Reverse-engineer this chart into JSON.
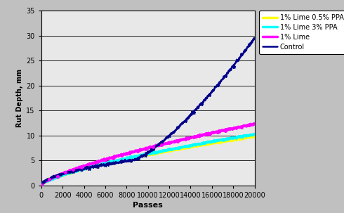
{
  "title": "",
  "xlabel": "Passes",
  "ylabel": "Rut Depth, mm",
  "xlim": [
    0,
    20000
  ],
  "ylim": [
    0,
    35
  ],
  "yticks": [
    0,
    5,
    10,
    15,
    20,
    25,
    30,
    35
  ],
  "xticks": [
    0,
    2000,
    4000,
    6000,
    8000,
    10000,
    12000,
    14000,
    16000,
    18000,
    20000
  ],
  "legend_labels": [
    "Control",
    "1% Lime",
    "1% Lime 0.5% PPA",
    "1% Lime 3% PPA"
  ],
  "legend_colors": [
    "#00008B",
    "#FF00FF",
    "#FFFF00",
    "#00FFFF"
  ],
  "background_color": "#c0c0c0",
  "plot_background": "#e8e8e8",
  "control_end": 29.5,
  "lime_end": 12.3,
  "lime_ppa05_end": 9.8,
  "lime_ppa3_end": 10.2,
  "control_inflection": 8500
}
